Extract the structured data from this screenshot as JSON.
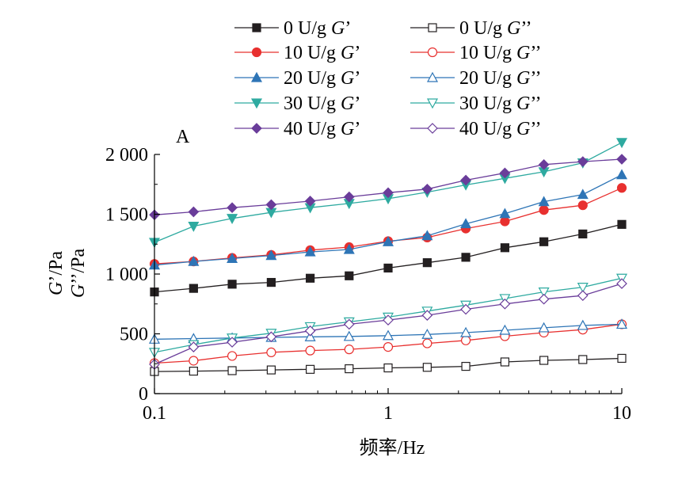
{
  "chart_data": {
    "type": "line",
    "panel_label": "A",
    "xlabel": "频率/Hz",
    "ylabel_primary": "G’/Pa",
    "ylabel_secondary": "G’’/Pa",
    "x_scale": "log",
    "xlim": [
      0.1,
      10
    ],
    "ylim": [
      0,
      2000
    ],
    "x_ticks": [
      0.1,
      1,
      10
    ],
    "x_tick_labels": [
      "0.1",
      "1",
      "10"
    ],
    "y_ticks": [
      0,
      500,
      1000,
      1500,
      2000
    ],
    "y_tick_labels": [
      "0",
      "500",
      "1 000",
      "1 500",
      "2 000"
    ],
    "grid": false,
    "legend_position": "top",
    "x": [
      0.1,
      0.147,
      0.215,
      0.316,
      0.464,
      0.681,
      1.0,
      1.47,
      2.15,
      3.16,
      4.64,
      6.81,
      10.0
    ],
    "series": [
      {
        "name": "0 U/g G’",
        "prefix": "0 U/g ",
        "sym": "G",
        "prime": "’",
        "color": "#231f20",
        "marker": "square",
        "filled": true,
        "values": [
          850,
          880,
          915,
          930,
          965,
          985,
          1050,
          1095,
          1140,
          1220,
          1270,
          1335,
          1415
        ]
      },
      {
        "name": "0 U/g G’’",
        "prefix": "0 U/g ",
        "sym": "G",
        "prime": "’’",
        "color": "#231f20",
        "marker": "square",
        "filled": false,
        "values": [
          185,
          188,
          192,
          198,
          203,
          208,
          215,
          220,
          228,
          265,
          278,
          285,
          295
        ]
      },
      {
        "name": "10 U/g G’",
        "prefix": "10 U/g ",
        "sym": "G",
        "prime": "’",
        "color": "#e8302f",
        "marker": "circle",
        "filled": true,
        "values": [
          1085,
          1105,
          1135,
          1160,
          1200,
          1225,
          1275,
          1305,
          1380,
          1440,
          1535,
          1575,
          1720
        ]
      },
      {
        "name": "10 U/g G’’",
        "prefix": "10 U/g ",
        "sym": "G",
        "prime": "’’",
        "color": "#e8302f",
        "marker": "circle",
        "filled": false,
        "values": [
          255,
          275,
          315,
          345,
          360,
          370,
          390,
          420,
          445,
          480,
          510,
          535,
          580
        ]
      },
      {
        "name": "20 U/g G’",
        "prefix": "20 U/g ",
        "sym": "G",
        "prime": "’",
        "color": "#2e75b6",
        "marker": "triangle-up",
        "filled": true,
        "values": [
          1075,
          1105,
          1130,
          1155,
          1185,
          1205,
          1270,
          1320,
          1420,
          1505,
          1605,
          1665,
          1830
        ]
      },
      {
        "name": "20 U/g G’’",
        "prefix": "20 U/g ",
        "sym": "G",
        "prime": "’’",
        "color": "#2e75b6",
        "marker": "triangle-up",
        "filled": false,
        "values": [
          455,
          460,
          465,
          470,
          475,
          478,
          485,
          495,
          510,
          530,
          550,
          570,
          580
        ]
      },
      {
        "name": "30 U/g G’",
        "prefix": "30 U/g ",
        "sym": "G",
        "prime": "’",
        "color": "#2eaaa0",
        "marker": "triangle-down",
        "filled": true,
        "values": [
          1265,
          1400,
          1465,
          1515,
          1555,
          1590,
          1630,
          1685,
          1745,
          1800,
          1855,
          1930,
          2100
        ]
      },
      {
        "name": "30 U/g G’’",
        "prefix": "30 U/g ",
        "sym": "G",
        "prime": "’’",
        "color": "#2eaaa0",
        "marker": "triangle-down",
        "filled": false,
        "values": [
          345,
          410,
          465,
          505,
          560,
          600,
          640,
          690,
          740,
          795,
          850,
          890,
          965
        ]
      },
      {
        "name": "40 U/g G’",
        "prefix": "40 U/g ",
        "sym": "G",
        "prime": "’",
        "color": "#6a3d9a",
        "marker": "diamond",
        "filled": true,
        "values": [
          1495,
          1520,
          1555,
          1580,
          1610,
          1645,
          1680,
          1710,
          1785,
          1845,
          1915,
          1940,
          1960
        ]
      },
      {
        "name": "40 U/g G’’",
        "prefix": "40 U/g ",
        "sym": "G",
        "prime": "’’",
        "color": "#6a3d9a",
        "marker": "diamond",
        "filled": false,
        "values": [
          245,
          390,
          430,
          475,
          525,
          580,
          615,
          655,
          705,
          750,
          790,
          820,
          920
        ]
      }
    ]
  }
}
